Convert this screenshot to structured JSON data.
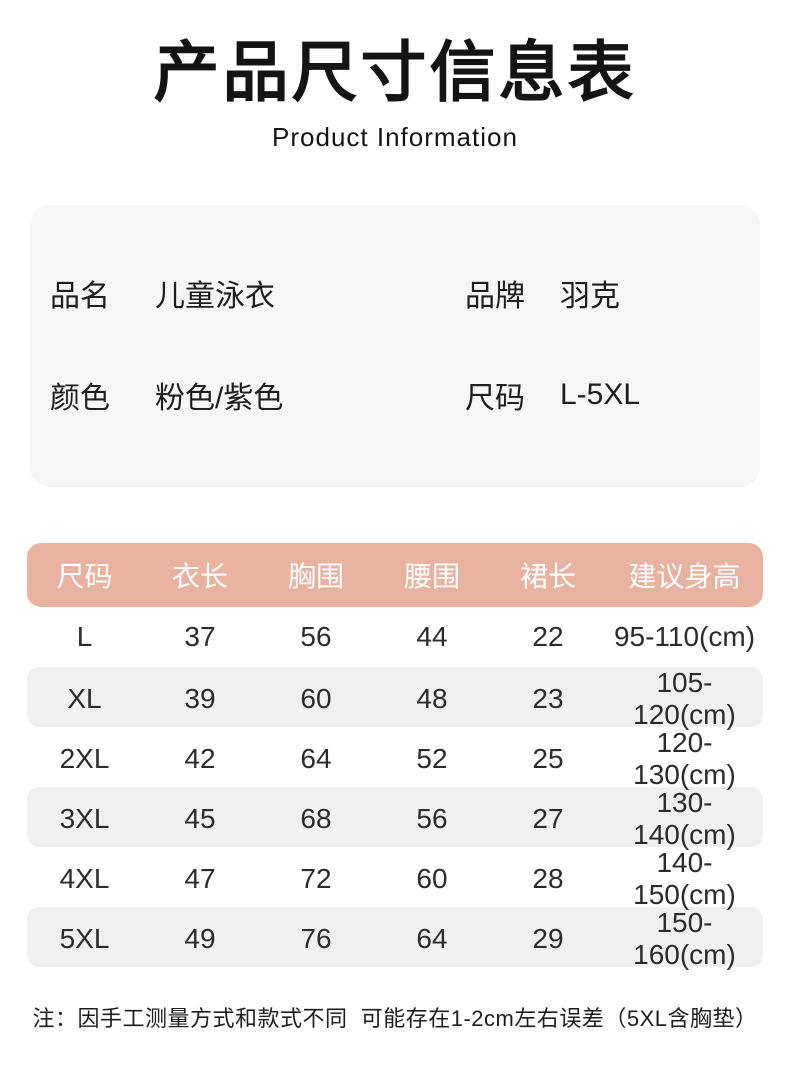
{
  "header": {
    "title": "产品尺寸信息表",
    "subtitle": "Product Information"
  },
  "info": {
    "fields": [
      {
        "label": "品名",
        "value": "儿童泳衣"
      },
      {
        "label": "品牌",
        "value": "羽克"
      },
      {
        "label": "颜色",
        "value": "粉色/紫色"
      },
      {
        "label": "尺码",
        "value": "L-5XL"
      }
    ]
  },
  "size_table": {
    "columns": [
      "尺码",
      "衣长",
      "胸围",
      "腰围",
      "裙长",
      "建议身高"
    ],
    "rows": [
      [
        "L",
        "37",
        "56",
        "44",
        "22",
        "95-110(cm)"
      ],
      [
        "XL",
        "39",
        "60",
        "48",
        "23",
        "105-120(cm)"
      ],
      [
        "2XL",
        "42",
        "64",
        "52",
        "25",
        "120-130(cm)"
      ],
      [
        "3XL",
        "45",
        "68",
        "56",
        "27",
        "130-140(cm)"
      ],
      [
        "4XL",
        "47",
        "72",
        "60",
        "28",
        "140-150(cm)"
      ],
      [
        "5XL",
        "49",
        "76",
        "64",
        "29",
        "150-160(cm)"
      ]
    ]
  },
  "note": "注：因手工测量方式和款式不同  可能存在1-2cm左右误差（5XL含胸垫）",
  "colors": {
    "table_header_bg": "#e8b2a0",
    "table_header_text": "#ffffff",
    "info_card_bg": "#f6f6f6",
    "row_alt_bg": "#f0f0f0",
    "text": "#1a1a1a",
    "page_bg": "#ffffff"
  }
}
